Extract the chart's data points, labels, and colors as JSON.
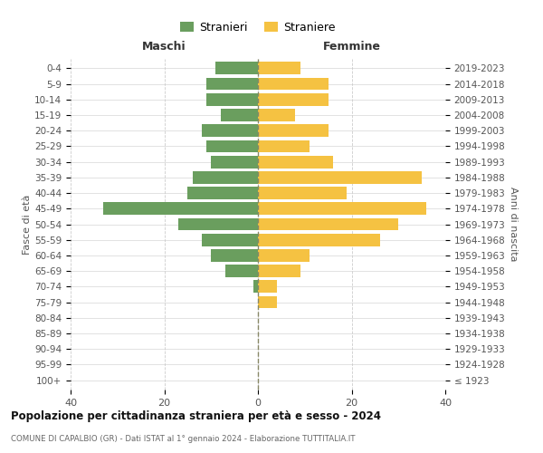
{
  "age_groups": [
    "100+",
    "95-99",
    "90-94",
    "85-89",
    "80-84",
    "75-79",
    "70-74",
    "65-69",
    "60-64",
    "55-59",
    "50-54",
    "45-49",
    "40-44",
    "35-39",
    "30-34",
    "25-29",
    "20-24",
    "15-19",
    "10-14",
    "5-9",
    "0-4"
  ],
  "birth_years": [
    "≤ 1923",
    "1924-1928",
    "1929-1933",
    "1934-1938",
    "1939-1943",
    "1944-1948",
    "1949-1953",
    "1954-1958",
    "1959-1963",
    "1964-1968",
    "1969-1973",
    "1974-1978",
    "1979-1983",
    "1984-1988",
    "1989-1993",
    "1994-1998",
    "1999-2003",
    "2004-2008",
    "2009-2013",
    "2014-2018",
    "2019-2023"
  ],
  "males": [
    0,
    0,
    0,
    0,
    0,
    0,
    1,
    7,
    10,
    12,
    17,
    33,
    15,
    14,
    10,
    11,
    12,
    8,
    11,
    11,
    9
  ],
  "females": [
    0,
    0,
    0,
    0,
    0,
    4,
    4,
    9,
    11,
    26,
    30,
    36,
    19,
    35,
    16,
    11,
    15,
    8,
    15,
    15,
    9
  ],
  "male_color": "#6a9e5e",
  "female_color": "#f5c242",
  "background_color": "#ffffff",
  "grid_color": "#cccccc",
  "dashed_line_color": "#888866",
  "title": "Popolazione per cittadinanza straniera per età e sesso - 2024",
  "subtitle": "COMUNE DI CAPALBIO (GR) - Dati ISTAT al 1° gennaio 2024 - Elaborazione TUTTITALIA.IT",
  "left_header": "Maschi",
  "right_header": "Femmine",
  "ylabel_left": "Fasce di età",
  "ylabel_right": "Anni di nascita",
  "legend_male": "Stranieri",
  "legend_female": "Straniere",
  "xlim": 40,
  "bar_height": 0.8
}
